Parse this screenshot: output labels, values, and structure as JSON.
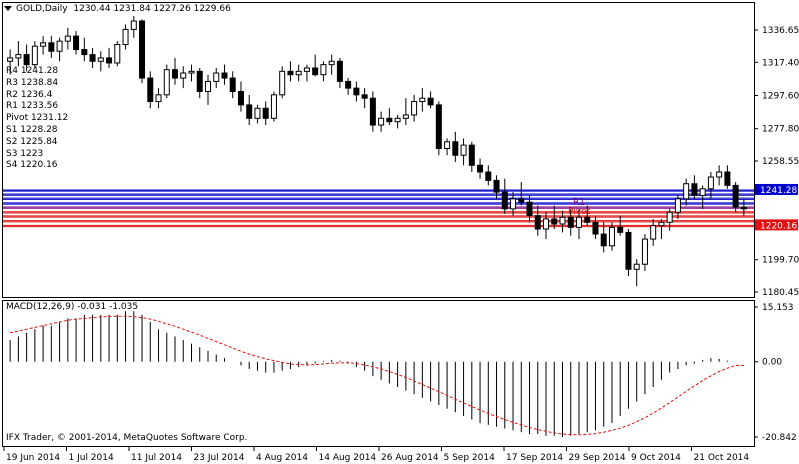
{
  "header": {
    "symbol": "GOLD,Daily",
    "ohlc": "1230.44 1231.84 1227.26 1229.66"
  },
  "pivots": [
    {
      "label": "R4 1241.28",
      "value": 1241.28,
      "role": "R4"
    },
    {
      "label": "R3 1238.84",
      "value": 1238.84,
      "role": "R3"
    },
    {
      "label": "R2 1236.4",
      "value": 1236.4,
      "role": "R2"
    },
    {
      "label": "R1 1233.56",
      "value": 1233.56,
      "role": "R1"
    },
    {
      "label": "Pivot 1231.12",
      "value": 1231.12,
      "role": "P"
    },
    {
      "label": "S1 1228.28",
      "value": 1228.28,
      "role": "S1"
    },
    {
      "label": "S2 1225.84",
      "value": 1225.84,
      "role": "S2"
    },
    {
      "label": "S3 1223",
      "value": 1223,
      "role": "S3"
    },
    {
      "label": "S4 1220.16",
      "value": 1220.16,
      "role": "S4"
    }
  ],
  "price_axis": {
    "ticks": [
      "1336.65",
      "1317.40",
      "1297.60",
      "1277.80",
      "1258.55",
      "1219.95",
      "1199.70",
      "1180.45"
    ],
    "tick_values": [
      1336.65,
      1317.4,
      1297.6,
      1277.8,
      1258.55,
      1219.95,
      1199.7,
      1180.45
    ],
    "badges": [
      {
        "text": "1241.28",
        "value": 1241.28,
        "color": "#0000cc"
      },
      {
        "text": "1220.16",
        "value": 1220.16,
        "color": "#e01010"
      }
    ]
  },
  "macd": {
    "label": "MACD(12,26,9) -0.031 -1.035",
    "ticks": [
      "15.153",
      "0.00",
      "-20.842"
    ],
    "tick_values": [
      15.153,
      0,
      -20.842
    ]
  },
  "time_axis": {
    "ticks": [
      "19 Jun 2014",
      "1 Jul 2014",
      "11 Jul 2014",
      "23 Jul 2014",
      "4 Aug 2014",
      "14 Aug 2014",
      "26 Aug 2014",
      "5 Sep 2014",
      "17 Sep 2014",
      "29 Sep 2014",
      "9 Oct 2014",
      "21 Oct 2014"
    ]
  },
  "chart_labels": {
    "r1_tag": "R1",
    "p_tag": "Pivot"
  },
  "footer": {
    "copyright": "IFX Trader, © 2001-2014, MetaQuotes Software Corp."
  },
  "colors": {
    "resistance": "#0000cc",
    "pivot": "#800080",
    "support": "#e01010",
    "signal": "#e01010",
    "candle_up": "#ffffff",
    "candle_down": "#000000"
  },
  "chart_data": {
    "type": "candlestick",
    "candles": [
      [
        1318,
        1325,
        1310,
        1320
      ],
      [
        1320,
        1330,
        1315,
        1322
      ],
      [
        1322,
        1328,
        1312,
        1316
      ],
      [
        1316,
        1330,
        1314,
        1327
      ],
      [
        1327,
        1333,
        1322,
        1329
      ],
      [
        1329,
        1333,
        1320,
        1324
      ],
      [
        1324,
        1332,
        1318,
        1330
      ],
      [
        1330,
        1338,
        1325,
        1333
      ],
      [
        1333,
        1336,
        1322,
        1325
      ],
      [
        1325,
        1332,
        1318,
        1322
      ],
      [
        1322,
        1326,
        1314,
        1318
      ],
      [
        1318,
        1324,
        1312,
        1320
      ],
      [
        1320,
        1326,
        1314,
        1317
      ],
      [
        1317,
        1330,
        1315,
        1328
      ],
      [
        1328,
        1340,
        1325,
        1337
      ],
      [
        1337,
        1345,
        1332,
        1342
      ],
      [
        1342,
        1343,
        1305,
        1308
      ],
      [
        1308,
        1312,
        1290,
        1294
      ],
      [
        1294,
        1302,
        1290,
        1298
      ],
      [
        1298,
        1316,
        1296,
        1313
      ],
      [
        1313,
        1320,
        1304,
        1308
      ],
      [
        1308,
        1315,
        1302,
        1311
      ],
      [
        1311,
        1316,
        1306,
        1312
      ],
      [
        1312,
        1314,
        1296,
        1300
      ],
      [
        1300,
        1310,
        1292,
        1306
      ],
      [
        1306,
        1314,
        1302,
        1311
      ],
      [
        1311,
        1316,
        1304,
        1308
      ],
      [
        1308,
        1312,
        1296,
        1300
      ],
      [
        1300,
        1306,
        1288,
        1292
      ],
      [
        1292,
        1298,
        1280,
        1284
      ],
      [
        1284,
        1292,
        1281,
        1290
      ],
      [
        1290,
        1294,
        1280,
        1284
      ],
      [
        1284,
        1300,
        1282,
        1298
      ],
      [
        1298,
        1315,
        1296,
        1312
      ],
      [
        1312,
        1318,
        1306,
        1310
      ],
      [
        1310,
        1316,
        1306,
        1312
      ],
      [
        1312,
        1316,
        1306,
        1314
      ],
      [
        1314,
        1322,
        1309,
        1310
      ],
      [
        1310,
        1318,
        1306,
        1316
      ],
      [
        1316,
        1322,
        1310,
        1318
      ],
      [
        1318,
        1320,
        1302,
        1306
      ],
      [
        1306,
        1308,
        1298,
        1302
      ],
      [
        1302,
        1306,
        1294,
        1298
      ],
      [
        1298,
        1302,
        1290,
        1296
      ],
      [
        1296,
        1300,
        1276,
        1280
      ],
      [
        1280,
        1288,
        1276,
        1284
      ],
      [
        1284,
        1290,
        1280,
        1282
      ],
      [
        1282,
        1286,
        1278,
        1284
      ],
      [
        1284,
        1296,
        1280,
        1286
      ],
      [
        1286,
        1298,
        1282,
        1294
      ],
      [
        1294,
        1302,
        1288,
        1296
      ],
      [
        1296,
        1300,
        1290,
        1292
      ],
      [
        1292,
        1294,
        1262,
        1266
      ],
      [
        1266,
        1272,
        1262,
        1270
      ],
      [
        1270,
        1276,
        1258,
        1262
      ],
      [
        1262,
        1272,
        1256,
        1268
      ],
      [
        1268,
        1270,
        1252,
        1256
      ],
      [
        1256,
        1260,
        1248,
        1252
      ],
      [
        1252,
        1256,
        1244,
        1247
      ],
      [
        1247,
        1250,
        1236,
        1240
      ],
      [
        1240,
        1248,
        1227,
        1230
      ],
      [
        1230,
        1240,
        1226,
        1236
      ],
      [
        1236,
        1246,
        1232,
        1234
      ],
      [
        1234,
        1238,
        1222,
        1226
      ],
      [
        1226,
        1232,
        1214,
        1218
      ],
      [
        1218,
        1228,
        1212,
        1224
      ],
      [
        1224,
        1232,
        1218,
        1221
      ],
      [
        1221,
        1229,
        1216,
        1225
      ],
      [
        1225,
        1230,
        1214,
        1219
      ],
      [
        1219,
        1230,
        1212,
        1225
      ],
      [
        1225,
        1232,
        1220,
        1222
      ],
      [
        1222,
        1226,
        1212,
        1215
      ],
      [
        1215,
        1222,
        1204,
        1208
      ],
      [
        1208,
        1222,
        1205,
        1219
      ],
      [
        1219,
        1226,
        1214,
        1216
      ],
      [
        1216,
        1218,
        1190,
        1194
      ],
      [
        1194,
        1200,
        1184,
        1197
      ],
      [
        1197,
        1215,
        1193,
        1212
      ],
      [
        1212,
        1224,
        1208,
        1220
      ],
      [
        1220,
        1224,
        1212,
        1222
      ],
      [
        1222,
        1230,
        1217,
        1228
      ],
      [
        1228,
        1238,
        1224,
        1236
      ],
      [
        1236,
        1248,
        1232,
        1245
      ],
      [
        1245,
        1250,
        1236,
        1238
      ],
      [
        1238,
        1244,
        1230,
        1242
      ],
      [
        1242,
        1252,
        1236,
        1249
      ],
      [
        1249,
        1256,
        1244,
        1252
      ],
      [
        1252,
        1256,
        1242,
        1244
      ],
      [
        1244,
        1246,
        1228,
        1231
      ],
      [
        1231,
        1236,
        1226,
        1230
      ]
    ],
    "macd_hist": [
      6,
      7,
      8,
      9,
      10,
      10,
      11,
      12,
      12,
      13,
      13,
      13,
      13,
      13,
      14,
      14,
      13,
      11,
      9,
      8,
      7,
      6,
      5,
      4,
      3,
      2,
      1,
      0,
      -1,
      -2,
      -2.5,
      -3,
      -3,
      -2.5,
      -2,
      -1.5,
      -1,
      -0.5,
      0.2,
      0.5,
      0.3,
      -0.5,
      -1.5,
      -2.5,
      -4,
      -5,
      -6,
      -7,
      -8,
      -9,
      -10,
      -11,
      -12,
      -13,
      -14,
      -15,
      -16,
      -17,
      -17.5,
      -18,
      -18.5,
      -19,
      -19.5,
      -20,
      -20,
      -20.5,
      -20.5,
      -20.8,
      -20.5,
      -20,
      -19.5,
      -19,
      -18,
      -17,
      -15,
      -13,
      -11,
      -9,
      -7,
      -5,
      -3,
      -2,
      -1,
      -0.5,
      0.5,
      1,
      0.8,
      0.3,
      -0.031,
      -0.031
    ],
    "macd_signal": [
      8,
      8.5,
      9,
      9.5,
      10,
      10.5,
      11,
      11.5,
      11.8,
      12,
      12.2,
      12.4,
      12.5,
      12.6,
      12.6,
      12.5,
      12.2,
      11.8,
      11.2,
      10.5,
      9.8,
      9,
      8.2,
      7.4,
      6.5,
      5.6,
      4.7,
      3.8,
      2.9,
      2.1,
      1.4,
      0.8,
      0.3,
      -0.2,
      -0.6,
      -0.8,
      -0.9,
      -0.8,
      -0.6,
      -0.4,
      -0.3,
      -0.3,
      -0.5,
      -0.9,
      -1.4,
      -2,
      -2.7,
      -3.5,
      -4.4,
      -5.3,
      -6.3,
      -7.3,
      -8.3,
      -9.3,
      -10.4,
      -11.4,
      -12.4,
      -13.4,
      -14.3,
      -15.2,
      -16,
      -16.8,
      -17.5,
      -18.2,
      -18.8,
      -19.3,
      -19.7,
      -20,
      -20.2,
      -20.2,
      -20.1,
      -19.9,
      -19.5,
      -19,
      -18.4,
      -17.6,
      -16.6,
      -15.5,
      -14.2,
      -12.8,
      -11.3,
      -9.8,
      -8.2,
      -6.7,
      -5.2,
      -3.9,
      -2.7,
      -1.8,
      -1.035,
      -1.035
    ]
  }
}
